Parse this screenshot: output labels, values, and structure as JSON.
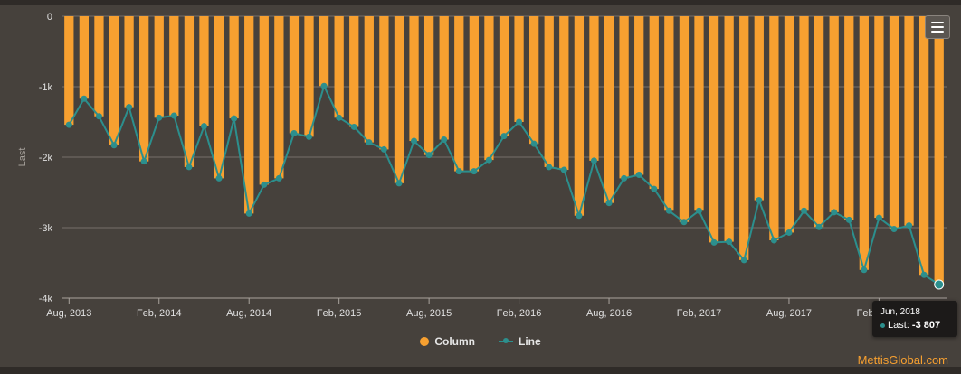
{
  "chart_data": {
    "type": "bar",
    "title": "",
    "ylabel": "Last",
    "xlabel": "",
    "ylim": [
      -4000,
      0
    ],
    "yticks": [
      0,
      -1000,
      -2000,
      -3000,
      -4000
    ],
    "ytick_labels": [
      "0",
      "-1k",
      "-2k",
      "-3k",
      "-4k"
    ],
    "xtick_labels": [
      "Aug, 2013",
      "Feb, 2014",
      "Aug, 2014",
      "Feb, 2015",
      "Aug, 2015",
      "Feb, 2016",
      "Aug, 2016",
      "Feb, 2017",
      "Aug, 2017",
      "Feb, 2018"
    ],
    "grid": true,
    "legend_position": "bottom-center",
    "categories_start": "Aug, 2013",
    "categories_end": "Jun, 2018",
    "series": [
      {
        "name": "Column",
        "type": "bar",
        "color": "#f7a030",
        "values": [
          -1540,
          -1170,
          -1420,
          -1830,
          -1290,
          -2060,
          -1440,
          -1410,
          -2140,
          -1560,
          -2300,
          -1450,
          -2800,
          -2390,
          -2300,
          -1660,
          -1710,
          -990,
          -1440,
          -1570,
          -1790,
          -1890,
          -2370,
          -1770,
          -1970,
          -1750,
          -2200,
          -2200,
          -2040,
          -1700,
          -1500,
          -1810,
          -2140,
          -2180,
          -2830,
          -2050,
          -2650,
          -2300,
          -2250,
          -2450,
          -2760,
          -2920,
          -2760,
          -3210,
          -3200,
          -3460,
          -2610,
          -3180,
          -3070,
          -2760,
          -2990,
          -2780,
          -2890,
          -3600,
          -2860,
          -3020,
          -2970,
          -3670,
          -3807
        ]
      },
      {
        "name": "Line",
        "type": "line",
        "color": "#2c8f8d",
        "values": [
          -1540,
          -1170,
          -1420,
          -1830,
          -1290,
          -2060,
          -1440,
          -1410,
          -2140,
          -1560,
          -2300,
          -1450,
          -2800,
          -2390,
          -2300,
          -1660,
          -1710,
          -990,
          -1440,
          -1570,
          -1790,
          -1890,
          -2370,
          -1770,
          -1970,
          -1750,
          -2200,
          -2200,
          -2040,
          -1700,
          -1500,
          -1810,
          -2140,
          -2180,
          -2830,
          -2050,
          -2650,
          -2300,
          -2250,
          -2450,
          -2760,
          -2920,
          -2760,
          -3210,
          -3200,
          -3460,
          -2610,
          -3180,
          -3070,
          -2760,
          -2990,
          -2780,
          -2890,
          -3600,
          -2860,
          -3020,
          -2970,
          -3670,
          -3807
        ]
      }
    ]
  },
  "legend": {
    "column_label": "Column",
    "line_label": "Line"
  },
  "tooltip": {
    "date": "Jun, 2018",
    "series_label": "Last: ",
    "value": "-3 807"
  },
  "credit": "MettisGlobal.com",
  "menu": {
    "icon": "hamburger-menu-icon"
  }
}
